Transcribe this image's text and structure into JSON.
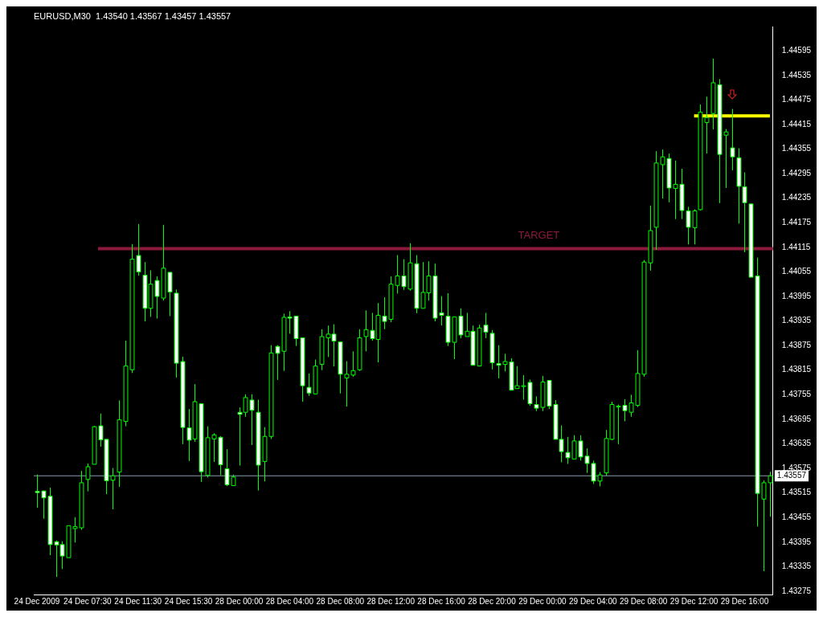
{
  "chart_data": {
    "type": "candlestick",
    "title": "EURUSD,M30  1.43540 1.43567 1.43457 1.43557",
    "color": "#00ff00",
    "grid": false,
    "colors": [
      "#ffffff",
      "#ffffff",
      "#ffffff",
      "#ffffff",
      "#ffffff",
      "#000000",
      "#000000",
      "#000000",
      "#000000",
      "#000000",
      "#ffffff",
      "#ffffff",
      "#000000",
      "#000000",
      "#000000",
      "#000000",
      "#ffffff",
      "#ffffff",
      "#000000",
      "#ffffff",
      "#000000",
      "#ffffff",
      "#ffffff",
      "#ffffff",
      "#ffffff",
      "#000000",
      "#ffffff",
      "#000000",
      "#000000",
      "#ffffff",
      "#ffffff",
      "#000000",
      "#ffffff",
      "#000000",
      "#ffffff",
      "#ffffff",
      "#000000",
      "#000000",
      "#ffffff",
      "#000000",
      "#ffffff",
      "#ffffff",
      "#ffffff",
      "#ffffff",
      "#000000",
      "#000000",
      "#000000",
      "#ffffff",
      "#ffffff",
      "#000000",
      "#000000",
      "#000000",
      "#000000",
      "#ffffff",
      "#000000",
      "#ffffff",
      "#000000",
      "#000000",
      "#ffffff",
      "#000000",
      "#ffffff",
      "#000000",
      "#000000",
      "#ffffff",
      "#ffffff",
      "#ffffff",
      "#000000",
      "#ffffff",
      "#000000",
      "#ffffff",
      "#000000",
      "#ffffff",
      "#ffffff",
      "#ffffff",
      "#000000",
      "#ffffff",
      "#000000",
      "#000000",
      "#ffffff",
      "#ffffff",
      "#000000",
      "#ffffff",
      "#ffffff",
      "#ffffff",
      "#ffffff",
      "#000000",
      "#ffffff",
      "#ffffff",
      "#ffffff",
      "#000000",
      "#000000",
      "#000000",
      "#000000",
      "#ffffff",
      "#000000",
      "#000000",
      "#000000",
      "#000000",
      "#000000",
      "#000000",
      "#ffffff",
      "#000000",
      "#ffffff",
      "#ffffff",
      "#000000",
      "#000000",
      "#000000",
      "#000000",
      "#ffffff",
      "#000000",
      "#ffffff",
      "#ffffff",
      "#ffffff",
      "#ffffff",
      "#ffffff",
      "#000000",
      "#000000"
    ],
    "legend": false,
    "categories": [
      "24 Dec 2009",
      null,
      null,
      null,
      null,
      null,
      null,
      null,
      "24 Dec 07:30",
      null,
      null,
      null,
      null,
      null,
      null,
      null,
      "24 Dec 11:30",
      null,
      null,
      null,
      null,
      null,
      null,
      null,
      "24 Dec 15:30",
      null,
      null,
      null,
      null,
      null,
      null,
      null,
      "28 Dec 00:00",
      null,
      null,
      null,
      null,
      null,
      null,
      null,
      "28 Dec 04:00",
      null,
      null,
      null,
      null,
      null,
      null,
      null,
      "28 Dec 08:00",
      null,
      null,
      null,
      null,
      null,
      null,
      null,
      "28 Dec 12:00",
      null,
      null,
      null,
      null,
      null,
      null,
      null,
      "28 Dec 16:00",
      null,
      null,
      null,
      null,
      null,
      null,
      null,
      "28 Dec 20:00",
      null,
      null,
      null,
      null,
      null,
      null,
      null,
      "29 Dec 00:00",
      null,
      null,
      null,
      null,
      null,
      null,
      null,
      "29 Dec 04:00",
      null,
      null,
      null,
      null,
      null,
      null,
      null,
      "29 Dec 08:00",
      null,
      null,
      null,
      null,
      null,
      null,
      null,
      "29 Dec 12:00",
      null,
      null,
      null,
      null,
      null,
      null,
      null,
      "29 Dec 16:00",
      null,
      null,
      null,
      null
    ],
    "ohlc": [
      [
        1.43519,
        1.4356,
        1.43479,
        1.43516
      ],
      [
        1.4352,
        1.4352,
        1.43452,
        1.43503
      ],
      [
        1.43507,
        1.43528,
        1.43363,
        1.43389
      ],
      [
        1.43396,
        1.43399,
        1.4331,
        1.43388
      ],
      [
        1.43389,
        1.43397,
        1.43329,
        1.43361
      ],
      [
        1.43357,
        1.43435,
        1.43357,
        1.43435
      ],
      [
        1.43428,
        1.43456,
        1.43394,
        1.43433
      ],
      [
        1.4343,
        1.43569,
        1.43425,
        1.4354
      ],
      [
        1.43548,
        1.43587,
        1.43519,
        1.43579
      ],
      [
        1.43585,
        1.43679,
        1.43585,
        1.43677
      ],
      [
        1.43679,
        1.43709,
        1.43628,
        1.43645
      ],
      [
        1.43646,
        1.43646,
        1.43512,
        1.43545
      ],
      [
        1.43546,
        1.43576,
        1.43475,
        1.43557
      ],
      [
        1.43566,
        1.43741,
        1.4353,
        1.43694
      ],
      [
        1.4369,
        1.43887,
        1.43678,
        1.43825
      ],
      [
        1.43816,
        1.44123,
        1.43808,
        1.44086
      ],
      [
        1.44095,
        1.44172,
        1.44046,
        1.44055
      ],
      [
        1.44047,
        1.44079,
        1.43934,
        1.43966
      ],
      [
        1.43966,
        1.44059,
        1.43945,
        1.44025
      ],
      [
        1.44034,
        1.44044,
        1.43941,
        1.43995
      ],
      [
        1.43991,
        1.4417,
        1.43985,
        1.44064
      ],
      [
        1.44054,
        1.44054,
        1.43947,
        1.44006
      ],
      [
        1.44003,
        1.44012,
        1.43797,
        1.43832
      ],
      [
        1.43836,
        1.43848,
        1.43634,
        1.43675
      ],
      [
        1.43674,
        1.4372,
        1.43593,
        1.43644
      ],
      [
        1.43647,
        1.43781,
        1.4364,
        1.43738
      ],
      [
        1.43733,
        1.43733,
        1.43542,
        1.43567
      ],
      [
        1.43558,
        1.43678,
        1.43553,
        1.4365
      ],
      [
        1.43647,
        1.43661,
        1.43591,
        1.43657
      ],
      [
        1.43651,
        1.43654,
        1.43558,
        1.43584
      ],
      [
        1.43574,
        1.43622,
        1.43532,
        1.43535
      ],
      [
        1.43533,
        1.4356,
        1.43533,
        1.43554
      ],
      [
        1.43712,
        1.43724,
        1.43582,
        1.43707
      ],
      [
        1.43712,
        1.43756,
        1.43701,
        1.43748
      ],
      [
        1.43742,
        1.43756,
        1.43632,
        1.43717
      ],
      [
        1.43712,
        1.43743,
        1.43521,
        1.43583
      ],
      [
        1.43592,
        1.43676,
        1.43543,
        1.43653
      ],
      [
        1.43653,
        1.43876,
        1.43647,
        1.43857
      ],
      [
        1.43873,
        1.43876,
        1.43791,
        1.43856
      ],
      [
        1.43861,
        1.43953,
        1.43813,
        1.43944
      ],
      [
        1.43945,
        1.43959,
        1.43904,
        1.43942
      ],
      [
        1.43947,
        1.43947,
        1.43874,
        1.43892
      ],
      [
        1.43894,
        1.43894,
        1.43738,
        1.43777
      ],
      [
        1.43773,
        1.43807,
        1.43752,
        1.43759
      ],
      [
        1.43757,
        1.43841,
        1.43757,
        1.43825
      ],
      [
        1.43829,
        1.43915,
        1.43815,
        1.43897
      ],
      [
        1.43894,
        1.43924,
        1.43847,
        1.43903
      ],
      [
        1.43903,
        1.43927,
        1.43824,
        1.43886
      ],
      [
        1.43884,
        1.43884,
        1.43758,
        1.43805
      ],
      [
        1.43796,
        1.43837,
        1.43726,
        1.43805
      ],
      [
        1.43803,
        1.43861,
        1.43799,
        1.43814
      ],
      [
        1.43816,
        1.43915,
        1.43813,
        1.43894
      ],
      [
        1.43897,
        1.43961,
        1.43861,
        1.43914
      ],
      [
        1.43912,
        1.43955,
        1.43887,
        1.43892
      ],
      [
        1.4389,
        1.43979,
        1.43834,
        1.43949
      ],
      [
        1.43947,
        1.43993,
        1.43915,
        1.43934
      ],
      [
        1.43939,
        1.44044,
        1.43932,
        1.44025
      ],
      [
        1.44022,
        1.44096,
        1.44002,
        1.44045
      ],
      [
        1.44045,
        1.44086,
        1.44011,
        1.44019
      ],
      [
        1.44013,
        1.44125,
        1.44009,
        1.44077
      ],
      [
        1.44075,
        1.44096,
        1.43954,
        1.43966
      ],
      [
        1.43966,
        1.44079,
        1.43966,
        1.44005
      ],
      [
        1.44004,
        1.44081,
        1.43985,
        1.44045
      ],
      [
        1.44045,
        1.44075,
        1.43934,
        1.43942
      ],
      [
        1.43955,
        1.43996,
        1.43924,
        1.43949
      ],
      [
        1.43947,
        1.44003,
        1.43874,
        1.43883
      ],
      [
        1.43883,
        1.43945,
        1.43842,
        1.43945
      ],
      [
        1.43947,
        1.43966,
        1.43893,
        1.43901
      ],
      [
        1.43897,
        1.43955,
        1.43897,
        1.4391
      ],
      [
        1.4391,
        1.43924,
        1.43827,
        1.43827
      ],
      [
        1.43825,
        1.43926,
        1.43825,
        1.43918
      ],
      [
        1.43925,
        1.43955,
        1.43893,
        1.43908
      ],
      [
        1.43905,
        1.43913,
        1.43817,
        1.43833
      ],
      [
        1.43831,
        1.43876,
        1.43795,
        1.43827
      ],
      [
        1.43829,
        1.43855,
        1.43812,
        1.43836
      ],
      [
        1.43835,
        1.43844,
        1.43766,
        1.43766
      ],
      [
        1.4377,
        1.43825,
        1.4377,
        1.43777
      ],
      [
        1.43777,
        1.43803,
        1.43743,
        1.43777
      ],
      [
        1.43785,
        1.43792,
        1.43728,
        1.43733
      ],
      [
        1.43731,
        1.43751,
        1.43715,
        1.43722
      ],
      [
        1.43724,
        1.43801,
        1.43715,
        1.43786
      ],
      [
        1.4379,
        1.4379,
        1.4372,
        1.43727
      ],
      [
        1.43731,
        1.43742,
        1.43646,
        1.43646
      ],
      [
        1.43646,
        1.4368,
        1.4359,
        1.43616
      ],
      [
        1.43614,
        1.43652,
        1.43586,
        1.43601
      ],
      [
        1.43598,
        1.43656,
        1.43598,
        1.43642
      ],
      [
        1.43642,
        1.43656,
        1.43594,
        1.43603
      ],
      [
        1.43605,
        1.43624,
        1.43564,
        1.43587
      ],
      [
        1.43587,
        1.43594,
        1.43537,
        1.43544
      ],
      [
        1.43544,
        1.43566,
        1.43531,
        1.43559
      ],
      [
        1.43564,
        1.43669,
        1.43557,
        1.43648
      ],
      [
        1.43646,
        1.43738,
        1.43644,
        1.43731
      ],
      [
        1.43727,
        1.43731,
        1.43634,
        1.43727
      ],
      [
        1.43729,
        1.43744,
        1.4369,
        1.43716
      ],
      [
        1.43712,
        1.43755,
        1.43701,
        1.43735
      ],
      [
        1.43729,
        1.43864,
        1.43725,
        1.43807
      ],
      [
        1.43805,
        1.44084,
        1.43799,
        1.44079
      ],
      [
        1.44077,
        1.44217,
        1.44058,
        1.44156
      ],
      [
        1.44164,
        1.4435,
        1.44109,
        1.44321
      ],
      [
        1.44317,
        1.44354,
        1.44234,
        1.44336
      ],
      [
        1.44332,
        1.44344,
        1.44225,
        1.4426
      ],
      [
        1.44259,
        1.44327,
        1.44184,
        1.44269
      ],
      [
        1.44269,
        1.44307,
        1.44184,
        1.44205
      ],
      [
        1.44204,
        1.44214,
        1.44122,
        1.44164
      ],
      [
        1.44163,
        1.44208,
        1.44122,
        1.44204
      ],
      [
        1.44207,
        1.44464,
        1.44205,
        1.44445
      ],
      [
        1.4442,
        1.44483,
        1.44344,
        1.44432
      ],
      [
        1.44442,
        1.44576,
        1.44403,
        1.44517
      ],
      [
        1.44512,
        1.44526,
        1.44223,
        1.44342
      ],
      [
        1.44389,
        1.44404,
        1.4426,
        1.44397
      ],
      [
        1.44358,
        1.44453,
        1.44303,
        1.44336
      ],
      [
        1.44334,
        1.44357,
        1.44173,
        1.44264
      ],
      [
        1.44263,
        1.44298,
        1.44103,
        1.44224
      ],
      [
        1.44221,
        1.44221,
        1.44042,
        1.44042
      ],
      [
        1.44045,
        1.4409,
        1.43433,
        1.43514
      ],
      [
        1.435,
        1.43546,
        1.43324,
        1.4354
      ],
      [
        1.4354,
        1.43567,
        1.43457,
        1.43557
      ]
    ],
    "series": [
      {
        "type": "line",
        "color": "#ffff00",
        "values": [
          null,
          null,
          null,
          null,
          null,
          null,
          null,
          null,
          null,
          null,
          null,
          null,
          null,
          null,
          null,
          null,
          null,
          null,
          null,
          null,
          null,
          null,
          null,
          null,
          null,
          null,
          null,
          null,
          null,
          null,
          null,
          null,
          null,
          null,
          null,
          null,
          null,
          null,
          null,
          null,
          null,
          null,
          null,
          null,
          null,
          null,
          null,
          null,
          null,
          null,
          null,
          null,
          null,
          null,
          null,
          null,
          null,
          null,
          null,
          null,
          null,
          null,
          null,
          null,
          null,
          null,
          null,
          null,
          null,
          null,
          null,
          null,
          null,
          null,
          null,
          null,
          null,
          null,
          null,
          null,
          null,
          null,
          null,
          null,
          null,
          null,
          null,
          null,
          null,
          null,
          null,
          null,
          null,
          null,
          null,
          null,
          null,
          null,
          null,
          null,
          null,
          null,
          null,
          null,
          1.44436,
          1.44436,
          1.44436,
          1.44436,
          1.44436,
          1.44436,
          1.44436,
          1.44436,
          1.44436,
          1.44436,
          1.44436,
          1.44436,
          1.44436
        ]
      }
    ],
    "ref_lines": [
      {
        "axis": "y",
        "value": 1.44112,
        "label": "TARGET",
        "color": "#8c1a3c"
      },
      {
        "axis": "y",
        "value": 1.43557,
        "label": "1.43557",
        "color": "#8a9bb0"
      }
    ],
    "ylim": [
      1.43267,
      1.44654
    ],
    "yticks": [
      1.44595,
      1.44535,
      1.44475,
      1.44415,
      1.44355,
      1.44295,
      1.44235,
      1.44175,
      1.44115,
      1.44055,
      1.43995,
      1.43935,
      1.43875,
      1.43815,
      1.43755,
      1.43695,
      1.43635,
      1.43575,
      1.43515,
      1.43455,
      1.43395,
      1.43335,
      1.43275
    ]
  }
}
